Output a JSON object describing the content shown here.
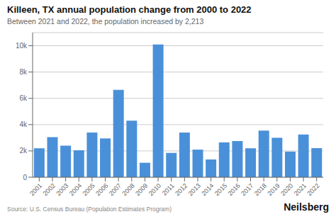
{
  "chart_data": {
    "type": "bar",
    "title": "Killeen, TX annual population change from 2000 to 2022",
    "subtitle": "Between 2021 and 2022, the population increased by 2,213",
    "source": "Source: U.S. Census Bureau (Population Estimates Program)",
    "watermark": "Neilsberg",
    "categories": [
      "2001",
      "2002",
      "2003",
      "2004",
      "2005",
      "2006",
      "2007",
      "2008",
      "2009",
      "2010",
      "2011",
      "2012",
      "2013",
      "2014",
      "2015",
      "2016",
      "2017",
      "2018",
      "2019",
      "2020",
      "2021",
      "2022"
    ],
    "values": [
      2200,
      3050,
      2400,
      2050,
      3400,
      2950,
      6650,
      4300,
      1100,
      10100,
      1850,
      3400,
      2100,
      1350,
      2650,
      2750,
      2200,
      3550,
      3000,
      1950,
      3250,
      2213
    ],
    "color": "#4a90d9",
    "ylim": [
      0,
      11000
    ],
    "yticks": [
      0,
      {
        "value": 2000,
        "label": "2k"
      },
      {
        "value": 4000,
        "label": "4k"
      },
      {
        "value": 6000,
        "label": "6k"
      },
      {
        "value": 8000,
        "label": "8k"
      },
      {
        "value": 10000,
        "label": "10k"
      }
    ],
    "grid": true
  }
}
